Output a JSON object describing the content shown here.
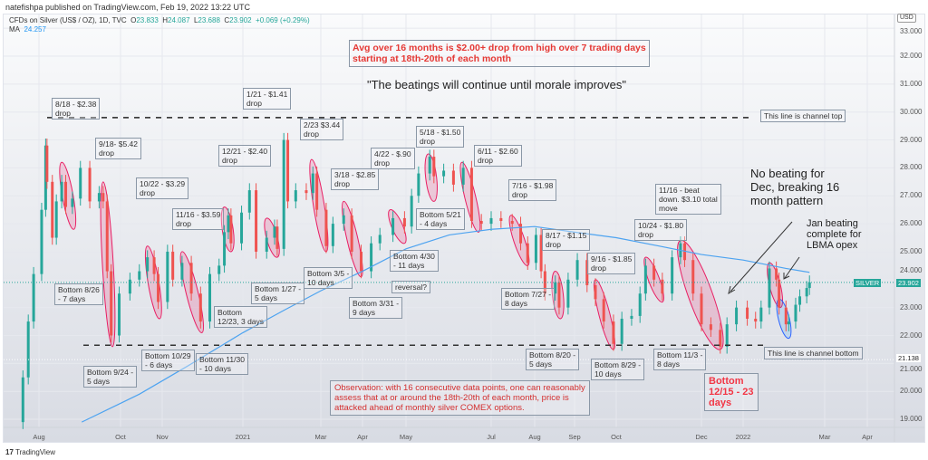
{
  "header": {
    "published": "natefishpa published on TradingView.com, Feb 19, 2022 13:22 UTC"
  },
  "legend": {
    "symbol": "CFDs on Silver (US$ / OZ), 1D, TVC",
    "o_label": "O",
    "open": "23.833",
    "h_label": "H",
    "high": "24.087",
    "l_label": "L",
    "low": "23.688",
    "c_label": "C",
    "close": "23.902",
    "change": "+0.069 (+0.29%)",
    "ma_label": "MA",
    "ma_value": "24.257"
  },
  "footer": {
    "brand": "TradingView"
  },
  "price_axis": {
    "currency": "USD",
    "ticks": [
      "33.000",
      "32.000",
      "31.000",
      "30.000",
      "29.000",
      "28.000",
      "27.000",
      "26.000",
      "25.000",
      "24.000",
      "23.000",
      "22.000",
      "21.000",
      "20.000",
      "19.000"
    ],
    "current_tag": "SILVER",
    "current_price": "23.902",
    "marker_price": "21.138"
  },
  "colors": {
    "up": "#26a69a",
    "down": "#ef5350",
    "ma": "#4da3f0",
    "drop_zone": "#e91e63",
    "annotation_red": "#e53935"
  },
  "annotations": {
    "headline": "Avg over 16 months is $2.00+ drop from high over 7 trading days\nstarting at 18th-20th of each month",
    "quote": "\"The beatings will continue until morale improves\"",
    "drops": [
      "8/18 - $2.38\ndrop",
      "9/18- $5.42\ndrop",
      "10/22 - $3.29\ndrop",
      "11/16 - $3.59\ndrop",
      "12/21 - $2.40\ndrop",
      "1/21 - $1.41\ndrop",
      "2/23 $3.44\ndrop",
      "3/18 - $2.85\ndrop",
      "4/22 - $.90\ndrop",
      "5/18 - $1.50\ndrop",
      "6/11 - $2.60\ndrop",
      "7/16 - $1.98\ndrop",
      "8/17 - $1.15\ndrop",
      "9/16 - $1.85\ndrop",
      "10/24 - $1.80\ndrop",
      "11/16 - beat\ndown. $3.10 total\nmove"
    ],
    "bottoms": [
      "Bottom 8/26\n- 7 days",
      "Bottom 9/24 -\n5 days",
      "Bottom 10/29\n- 6 days",
      "Bottom 11/30\n- 10 days",
      "Bottom\n12/23, 3 days",
      "Bottom 1/27 -\n5 days",
      "Bottom 3/5 -\n10 days",
      "Bottom 3/31 -\n9 days",
      "reversal?",
      "Bottom 4/30\n- 11 days",
      "Bottom 5/21\n- 4 days",
      "Bottom 7/27 -\n8 days",
      "Bottom 8/20 -\n5 days",
      "Bottom 8/29 -\n10 days",
      "Bottom 11/3 -\n8 days",
      "Bottom\n12/15 - 23\ndays"
    ],
    "no_beating": "No beating for\nDec, breaking 16\nmonth pattern",
    "jan_beating": "Jan beating\ncomplete for\nLBMA opex",
    "channel_top": "This line is channel top",
    "channel_bottom": "This line is channel bottom",
    "observation": "Observation: with 16 consecutive data points, one can reasonably\nassess that at or around the 18th-20th of each month, price is\nattacked ahead of monthly silver COMEX options."
  },
  "chart_data": {
    "type": "line",
    "title": "CFDs on Silver (US$ / OZ), 1D, TVC",
    "xlabel": "",
    "ylabel": "USD",
    "ylim": [
      18.5,
      33.2
    ],
    "x_ticks": [
      "Aug",
      "Oct",
      "Nov",
      "2021",
      "Mar",
      "Apr",
      "May",
      "Jul",
      "Aug",
      "Sep",
      "Oct",
      "Dec",
      "2022",
      "Mar",
      "Apr"
    ],
    "channel_top": 29.8,
    "channel_bottom": 21.65,
    "series": [
      {
        "name": "Silver close (approx)",
        "points": [
          [
            "2020-07-10",
            18.9
          ],
          [
            "2020-07-20",
            20.5
          ],
          [
            "2020-07-24",
            22.5
          ],
          [
            "2020-07-28",
            24.2
          ],
          [
            "2020-08-03",
            26.5
          ],
          [
            "2020-08-06",
            28.8
          ],
          [
            "2020-08-07",
            27.5
          ],
          [
            "2020-08-11",
            25.5
          ],
          [
            "2020-08-14",
            26.8
          ],
          [
            "2020-08-18",
            27.5
          ],
          [
            "2020-08-21",
            26.6
          ],
          [
            "2020-08-26",
            26.9
          ],
          [
            "2020-09-01",
            28.0
          ],
          [
            "2020-09-08",
            26.8
          ],
          [
            "2020-09-15",
            27.1
          ],
          [
            "2020-09-18",
            26.8
          ],
          [
            "2020-09-21",
            24.3
          ],
          [
            "2020-09-24",
            22.0
          ],
          [
            "2020-09-30",
            23.5
          ],
          [
            "2020-10-08",
            24.0
          ],
          [
            "2020-10-15",
            24.3
          ],
          [
            "2020-10-21",
            24.8
          ],
          [
            "2020-10-26",
            24.2
          ],
          [
            "2020-10-29",
            23.2
          ],
          [
            "2020-11-05",
            25.0
          ],
          [
            "2020-11-09",
            24.0
          ],
          [
            "2020-11-16",
            24.6
          ],
          [
            "2020-11-23",
            23.5
          ],
          [
            "2020-11-30",
            22.5
          ],
          [
            "2020-12-07",
            24.2
          ],
          [
            "2020-12-14",
            24.5
          ],
          [
            "2020-12-18",
            25.7
          ],
          [
            "2020-12-21",
            26.3
          ],
          [
            "2020-12-23",
            25.3
          ],
          [
            "2020-12-31",
            26.4
          ],
          [
            "2021-01-06",
            27.2
          ],
          [
            "2021-01-11",
            25.0
          ],
          [
            "2021-01-19",
            25.5
          ],
          [
            "2021-01-25",
            25.9
          ],
          [
            "2021-01-27",
            25.1
          ],
          [
            "2021-02-01",
            29.0
          ],
          [
            "2021-02-04",
            26.8
          ],
          [
            "2021-02-10",
            27.2
          ],
          [
            "2021-02-18",
            27.1
          ],
          [
            "2021-02-23",
            27.8
          ],
          [
            "2021-02-26",
            26.5
          ],
          [
            "2021-03-05",
            25.2
          ],
          [
            "2021-03-10",
            26.0
          ],
          [
            "2021-03-18",
            26.3
          ],
          [
            "2021-03-24",
            25.0
          ],
          [
            "2021-03-31",
            24.3
          ],
          [
            "2021-04-07",
            25.3
          ],
          [
            "2021-04-13",
            25.6
          ],
          [
            "2021-04-22",
            26.2
          ],
          [
            "2021-04-30",
            25.9
          ],
          [
            "2021-05-05",
            27.0
          ],
          [
            "2021-05-10",
            27.8
          ],
          [
            "2021-05-18",
            28.4
          ],
          [
            "2021-05-21",
            27.7
          ],
          [
            "2021-05-28",
            27.9
          ],
          [
            "2021-06-04",
            27.4
          ],
          [
            "2021-06-11",
            28.0
          ],
          [
            "2021-06-17",
            26.1
          ],
          [
            "2021-06-24",
            26.0
          ],
          [
            "2021-07-01",
            26.2
          ],
          [
            "2021-07-08",
            26.1
          ],
          [
            "2021-07-16",
            26.0
          ],
          [
            "2021-07-22",
            25.3
          ],
          [
            "2021-07-27",
            24.6
          ],
          [
            "2021-08-02",
            25.6
          ],
          [
            "2021-08-06",
            24.3
          ],
          [
            "2021-08-09",
            23.5
          ],
          [
            "2021-08-17",
            23.9
          ],
          [
            "2021-08-20",
            23.0
          ],
          [
            "2021-08-27",
            24.0
          ],
          [
            "2021-09-03",
            24.7
          ],
          [
            "2021-09-10",
            23.8
          ],
          [
            "2021-09-16",
            23.3
          ],
          [
            "2021-09-22",
            22.5
          ],
          [
            "2021-09-29",
            21.7
          ],
          [
            "2021-10-05",
            22.6
          ],
          [
            "2021-10-12",
            22.7
          ],
          [
            "2021-10-18",
            23.5
          ],
          [
            "2021-10-22",
            24.5
          ],
          [
            "2021-10-28",
            24.0
          ],
          [
            "2021-11-03",
            23.5
          ],
          [
            "2021-11-10",
            24.8
          ],
          [
            "2021-11-16",
            25.3
          ],
          [
            "2021-11-19",
            24.7
          ],
          [
            "2021-11-25",
            23.5
          ],
          [
            "2021-12-01",
            22.4
          ],
          [
            "2021-12-08",
            22.2
          ],
          [
            "2021-12-15",
            21.6
          ],
          [
            "2021-12-20",
            22.4
          ],
          [
            "2021-12-27",
            23.0
          ],
          [
            "2022-01-04",
            22.6
          ],
          [
            "2022-01-10",
            22.5
          ],
          [
            "2022-01-14",
            23.0
          ],
          [
            "2022-01-20",
            24.4
          ],
          [
            "2022-01-25",
            24.0
          ],
          [
            "2022-01-27",
            23.0
          ],
          [
            "2022-02-01",
            22.4
          ],
          [
            "2022-02-03",
            22.5
          ],
          [
            "2022-02-08",
            23.1
          ],
          [
            "2022-02-11",
            23.4
          ],
          [
            "2022-02-16",
            23.7
          ],
          [
            "2022-02-18",
            23.9
          ]
        ]
      },
      {
        "name": "MA",
        "points": [
          [
            "2020-09-02",
            18.9
          ],
          [
            "2020-10-15",
            19.9
          ],
          [
            "2020-11-20",
            20.9
          ],
          [
            "2021-01-01",
            22.1
          ],
          [
            "2021-02-01",
            22.9
          ],
          [
            "2021-03-01",
            23.6
          ],
          [
            "2021-04-01",
            24.3
          ],
          [
            "2021-05-01",
            25.1
          ],
          [
            "2021-06-01",
            25.6
          ],
          [
            "2021-07-01",
            25.8
          ],
          [
            "2021-08-01",
            25.9
          ],
          [
            "2021-09-01",
            25.7
          ],
          [
            "2021-10-01",
            25.5
          ],
          [
            "2021-11-01",
            25.2
          ],
          [
            "2021-12-01",
            24.9
          ],
          [
            "2022-01-01",
            24.7
          ],
          [
            "2022-02-01",
            24.4
          ],
          [
            "2022-02-18",
            24.26
          ]
        ]
      }
    ],
    "drop_zones": [
      [
        "2020-08-18",
        "2020-08-27",
        28.2,
        25.8
      ],
      [
        "2020-09-18",
        "2020-09-25",
        27.5,
        21.6
      ],
      [
        "2020-10-21",
        "2020-10-30",
        25.2,
        22.6
      ],
      [
        "2020-11-16",
        "2020-12-01",
        25.0,
        22.1
      ],
      [
        "2020-12-18",
        "2020-12-23",
        26.6,
        25.0
      ],
      [
        "2021-01-19",
        "2021-01-27",
        26.2,
        24.8
      ],
      [
        "2021-02-22",
        "2021-03-05",
        28.3,
        25.0
      ],
      [
        "2021-03-18",
        "2021-03-31",
        26.8,
        24.1
      ],
      [
        "2021-04-20",
        "2021-04-30",
        26.5,
        25.3
      ],
      [
        "2021-05-17",
        "2021-05-21",
        28.5,
        26.8
      ],
      [
        "2021-06-10",
        "2021-06-22",
        28.2,
        25.7
      ],
      [
        "2021-07-15",
        "2021-07-27",
        26.3,
        24.5
      ],
      [
        "2021-08-17",
        "2021-08-21",
        24.3,
        22.6
      ],
      [
        "2021-09-16",
        "2021-09-29",
        24.0,
        21.5
      ],
      [
        "2021-10-22",
        "2021-11-03",
        24.8,
        23.2
      ],
      [
        "2021-11-16",
        "2021-12-15",
        25.4,
        21.5
      ],
      [
        "2022-01-20",
        "2022-01-28",
        24.6,
        23.0
      ]
    ],
    "blue_zone": [
      "2022-01-27",
      "2022-02-03",
      23.3,
      21.9
    ]
  }
}
